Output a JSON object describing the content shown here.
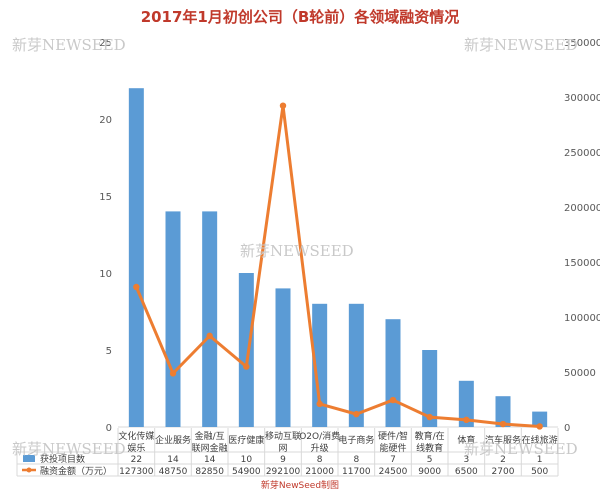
{
  "watermark": "新芽NEWSEED",
  "footer": "新芽NewSeed制图",
  "chart_data": {
    "type": "bar",
    "title": "2017年1月初创公司（B轮前）各领域融资情况",
    "categories": [
      "文化传媒娱乐",
      "企业服务",
      "金融/互联网金融",
      "医疗健康",
      "移动互联网",
      "O2O/消费升级",
      "电子商务",
      "硬件/智能硬件",
      "教育/在线教育",
      "体育",
      "汽车服务",
      "在线旅游"
    ],
    "category_labels": [
      [
        "文化传媒",
        "娱乐"
      ],
      [
        "企业服务"
      ],
      [
        "金融/互",
        "联网金融"
      ],
      [
        "医疗健康"
      ],
      [
        "移动互联",
        "网"
      ],
      [
        "O2O/消费",
        "升级"
      ],
      [
        "电子商务"
      ],
      [
        "硬件/智",
        "能硬件"
      ],
      [
        "教育/在",
        "线教育"
      ],
      [
        "体育"
      ],
      [
        "汽车服务"
      ],
      [
        "在线旅游"
      ]
    ],
    "series": [
      {
        "name": "获投项目数",
        "type": "bar",
        "axis": "left",
        "color": "#5b9bd5",
        "values": [
          22,
          14,
          14,
          10,
          9,
          8,
          8,
          7,
          5,
          3,
          2,
          1
        ]
      },
      {
        "name": "融资金额（万元）",
        "type": "line",
        "axis": "right",
        "color": "#ed7d31",
        "values": [
          127300,
          48750,
          82850,
          54900,
          292100,
          21000,
          11700,
          24500,
          9000,
          6500,
          2700,
          500
        ]
      }
    ],
    "ylim_left": [
      0,
      25
    ],
    "yticks_left": [
      0,
      5,
      10,
      15,
      20,
      25
    ],
    "ylim_right": [
      0,
      350000
    ],
    "yticks_right": [
      0,
      50000,
      100000,
      150000,
      200000,
      250000,
      300000,
      350000
    ],
    "grid": false,
    "legend": "bottom-table"
  }
}
